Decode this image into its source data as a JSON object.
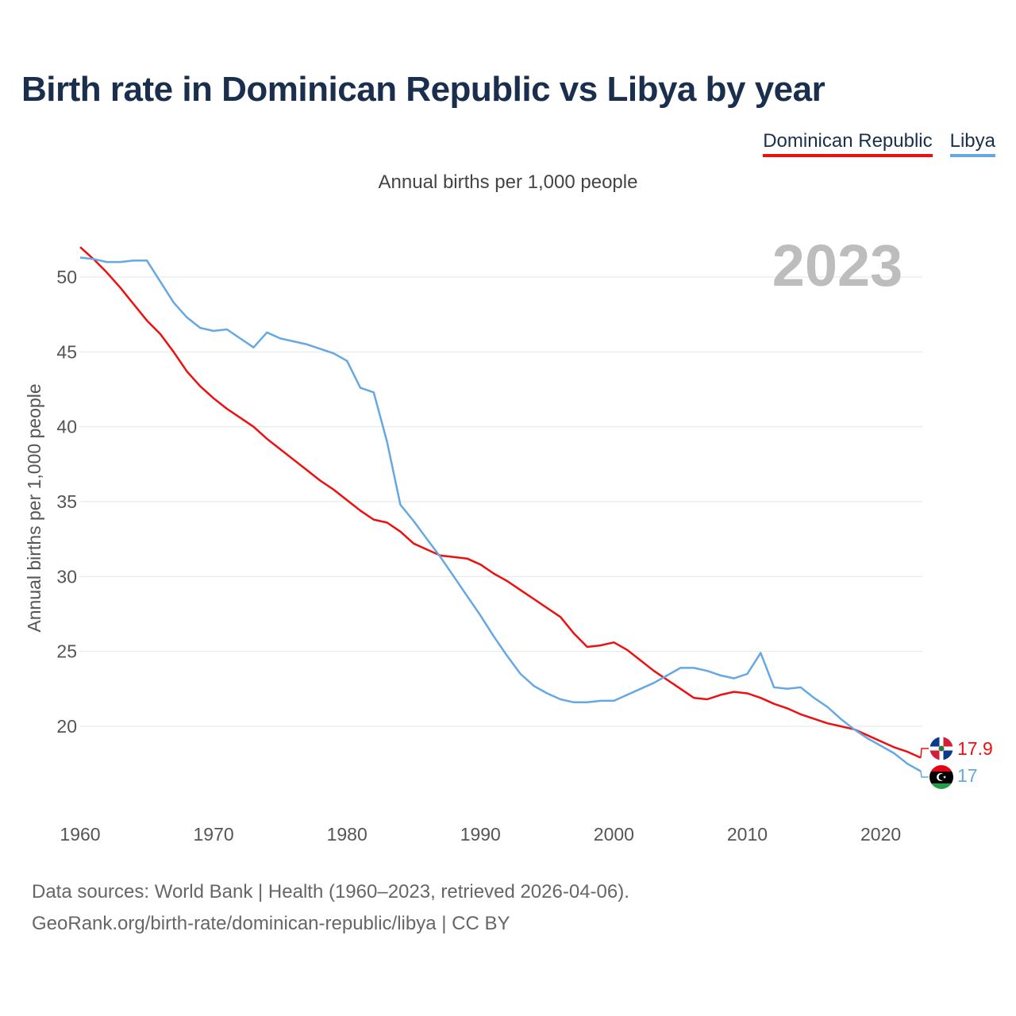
{
  "title": "Birth rate in Dominican Republic vs Libya by year",
  "subtitle": "Annual births per 1,000 people",
  "legend": [
    {
      "label": "Dominican Republic",
      "color": "#ef0f0f"
    },
    {
      "label": "Libya",
      "color": "#66a8e4"
    }
  ],
  "year_watermark": "2023",
  "footer": {
    "line1": "Data sources: World Bank | Health (1960–2023, retrieved 2026-04-06).",
    "line2": "GeoRank.org/birth-rate/dominican-republic/libya | CC BY"
  },
  "end_labels": {
    "dominican_republic": "17.9",
    "libya": "17"
  },
  "chart_data": {
    "type": "line",
    "title": "Birth rate in Dominican Republic vs Libya by year",
    "xlabel": "",
    "ylabel": "Annual births per 1,000 people",
    "xlim": [
      1960,
      2023
    ],
    "ylim": [
      15,
      52
    ],
    "x_ticks": [
      1960,
      1970,
      1980,
      1990,
      2000,
      2010,
      2020
    ],
    "y_ticks": [
      20,
      25,
      30,
      35,
      40,
      45,
      50
    ],
    "grid": true,
    "legend_position": "top-right",
    "x": [
      1960,
      1961,
      1962,
      1963,
      1964,
      1965,
      1966,
      1967,
      1968,
      1969,
      1970,
      1971,
      1972,
      1973,
      1974,
      1975,
      1976,
      1977,
      1978,
      1979,
      1980,
      1981,
      1982,
      1983,
      1984,
      1985,
      1986,
      1987,
      1988,
      1989,
      1990,
      1991,
      1992,
      1993,
      1994,
      1995,
      1996,
      1997,
      1998,
      1999,
      2000,
      2001,
      2002,
      2003,
      2004,
      2005,
      2006,
      2007,
      2008,
      2009,
      2010,
      2011,
      2012,
      2013,
      2014,
      2015,
      2016,
      2017,
      2018,
      2019,
      2020,
      2021,
      2022,
      2023
    ],
    "series": [
      {
        "name": "Dominican Republic",
        "color": "#ef0f0f",
        "values": [
          52.0,
          51.2,
          50.3,
          49.3,
          48.2,
          47.1,
          46.2,
          45.0,
          43.7,
          42.7,
          41.9,
          41.2,
          40.6,
          40.0,
          39.2,
          38.5,
          37.8,
          37.1,
          36.4,
          35.8,
          35.1,
          34.4,
          33.8,
          33.6,
          33.0,
          32.2,
          31.8,
          31.4,
          31.3,
          31.2,
          30.8,
          30.2,
          29.7,
          29.1,
          28.5,
          27.9,
          27.3,
          26.2,
          25.3,
          25.4,
          25.6,
          25.1,
          24.4,
          23.7,
          23.1,
          22.5,
          21.9,
          21.8,
          22.1,
          22.3,
          22.2,
          21.9,
          21.5,
          21.2,
          20.8,
          20.5,
          20.2,
          20.0,
          19.8,
          19.4,
          19.0,
          18.6,
          18.3,
          17.9
        ]
      },
      {
        "name": "Libya",
        "color": "#66a8e4",
        "values": [
          51.3,
          51.2,
          51.0,
          51.0,
          51.1,
          51.1,
          49.7,
          48.3,
          47.3,
          46.6,
          46.4,
          46.5,
          45.9,
          45.3,
          46.3,
          45.9,
          45.7,
          45.5,
          45.2,
          44.9,
          44.4,
          42.6,
          42.3,
          39.0,
          34.8,
          33.7,
          32.5,
          31.3,
          30.0,
          28.7,
          27.4,
          26.0,
          24.7,
          23.5,
          22.7,
          22.2,
          21.8,
          21.6,
          21.6,
          21.7,
          21.7,
          22.1,
          22.5,
          22.9,
          23.4,
          23.9,
          23.9,
          23.7,
          23.4,
          23.2,
          23.5,
          24.9,
          22.6,
          22.5,
          22.6,
          21.9,
          21.3,
          20.5,
          19.8,
          19.2,
          18.7,
          18.2,
          17.5,
          17.0
        ]
      }
    ]
  }
}
